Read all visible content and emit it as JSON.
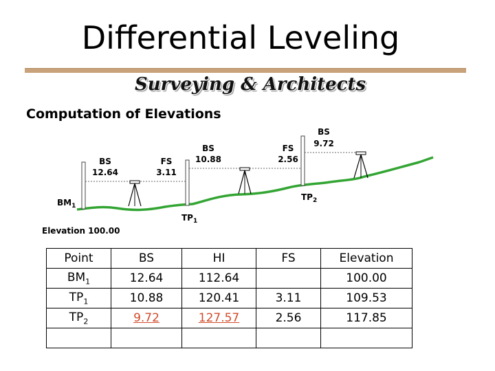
{
  "title": "Differential Leveling",
  "subtitle": "Surveying & Architects",
  "section_heading": "Computation of Elevations",
  "diagram": {
    "readings": [
      {
        "label": "BS",
        "value": "12.64"
      },
      {
        "label": "FS",
        "value": "3.11"
      },
      {
        "label": "BS",
        "value": "10.88"
      },
      {
        "label": "FS",
        "value": "2.56"
      },
      {
        "label": "BS",
        "value": "9.72"
      }
    ],
    "points": [
      {
        "base": "BM",
        "sub": "1"
      },
      {
        "base": "TP",
        "sub": "1"
      },
      {
        "base": "TP",
        "sub": "2"
      }
    ],
    "elevation_label": "Elevation 100.00",
    "colors": {
      "ground": "#33a533",
      "instrument": "#000000"
    }
  },
  "table": {
    "headers": [
      "Point",
      "BS",
      "HI",
      "FS",
      "Elevation"
    ],
    "rows": [
      {
        "point": "BM",
        "sub": "1",
        "bs": "12.64",
        "hi": "112.64",
        "fs": "",
        "elevation": "100.00"
      },
      {
        "point": "TP",
        "sub": "1",
        "bs": "10.88",
        "hi": "120.41",
        "fs": "3.11",
        "elevation": "109.53"
      },
      {
        "point": "TP",
        "sub": "2",
        "bs": "9.72",
        "hi": "127.57",
        "fs": "2.56",
        "elevation": "117.85"
      },
      {
        "point": "",
        "sub": "",
        "bs": "",
        "hi": "",
        "fs": "",
        "elevation": ""
      }
    ],
    "highlight_color": "#d24a2a"
  }
}
